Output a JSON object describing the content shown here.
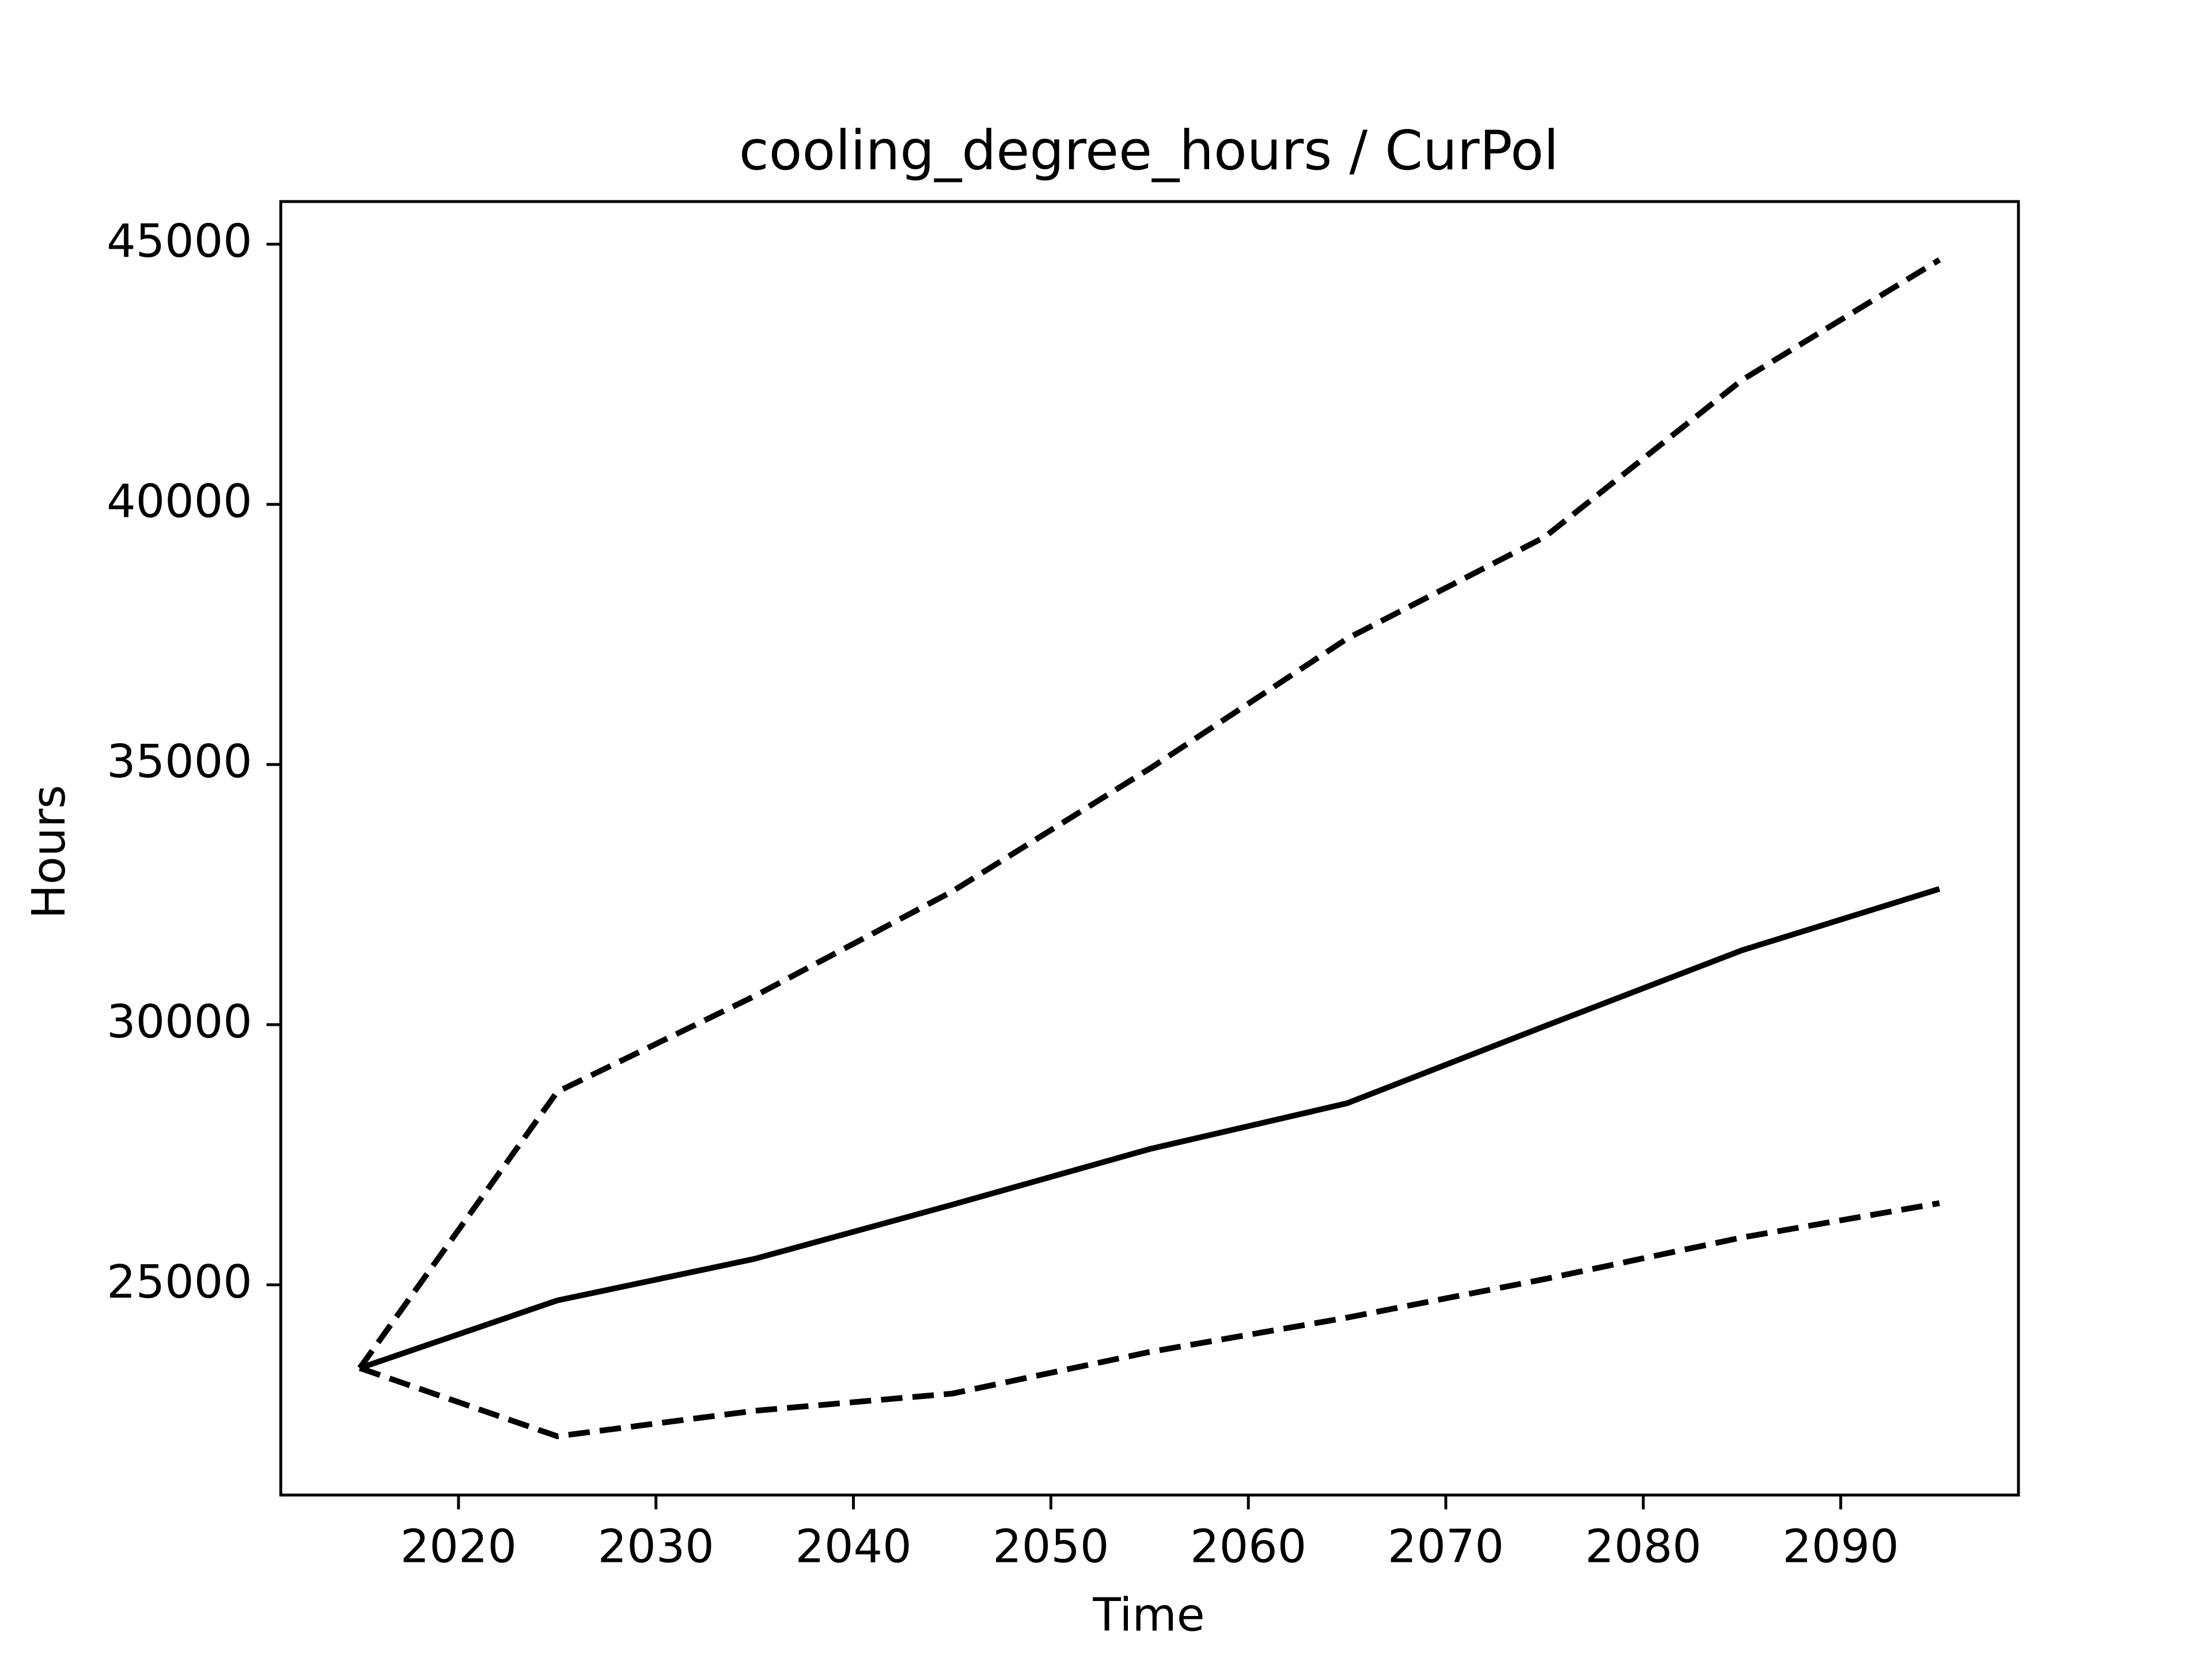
{
  "chart_data": {
    "type": "line",
    "title": "cooling_degree_hours / CurPol",
    "x_label": "Time",
    "y_label": "Hours",
    "x": [
      2015,
      2025,
      2035,
      2045,
      2055,
      2065,
      2075,
      2085,
      2095
    ],
    "series": [
      {
        "color": "#000000",
        "dashed": false,
        "values": [
          23400,
          24700,
          25500,
          26540,
          27610,
          28490,
          29970,
          31430,
          32610
        ]
      },
      {
        "color": "#000000",
        "dashed": true,
        "values": [
          23400,
          28710,
          30550,
          32560,
          34920,
          37420,
          39370,
          42390,
          44700
        ]
      },
      {
        "color": "#000000",
        "dashed": true,
        "values": [
          23400,
          22090,
          22580,
          22910,
          23710,
          24370,
          25110,
          25910,
          26570
        ]
      }
    ],
    "xlim": [
      2011,
      2099
    ],
    "xticks": [
      2020,
      2030,
      2040,
      2050,
      2060,
      2070,
      2080,
      2090
    ],
    "ylim": [
      20960,
      45820
    ],
    "yticks": [
      25000,
      30000,
      35000,
      40000,
      45000
    ],
    "grid": false
  }
}
